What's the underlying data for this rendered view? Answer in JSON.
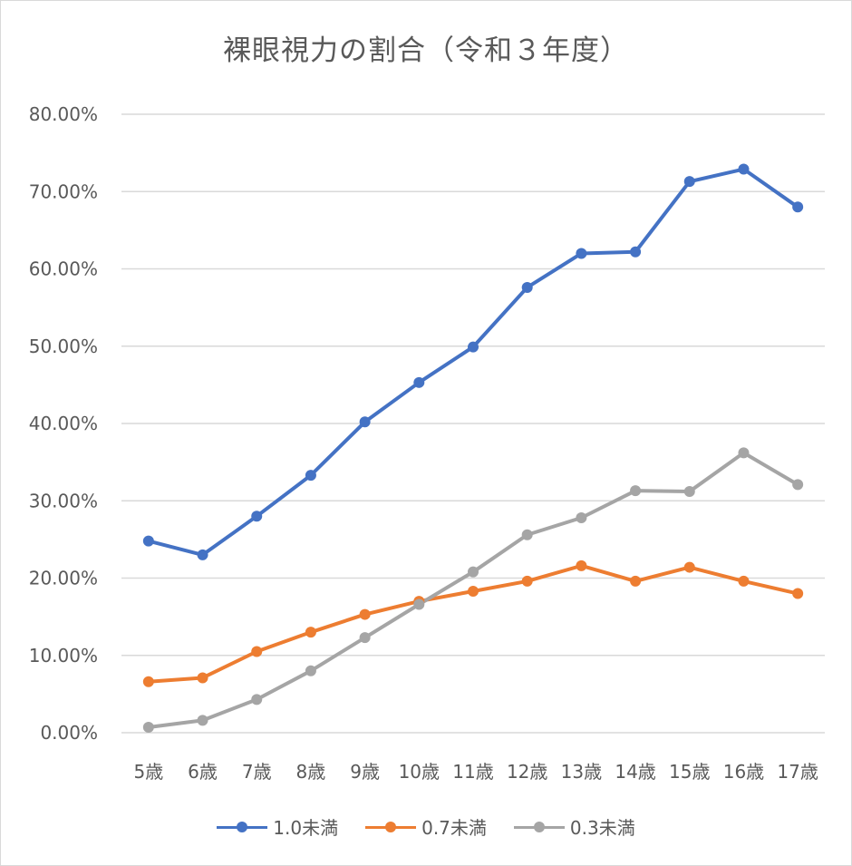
{
  "chart_data": {
    "type": "line",
    "title": "裸眼視力の割合（令和３年度）",
    "xlabel": "",
    "ylabel": "",
    "categories": [
      "5歳",
      "6歳",
      "7歳",
      "8歳",
      "9歳",
      "10歳",
      "11歳",
      "12歳",
      "13歳",
      "14歳",
      "15歳",
      "16歳",
      "17歳"
    ],
    "y_tick_labels": [
      "0.00%",
      "10.00%",
      "20.00%",
      "30.00%",
      "40.00%",
      "50.00%",
      "60.00%",
      "70.00%",
      "80.00%"
    ],
    "ylim": [
      0,
      80
    ],
    "grid": true,
    "legend_position": "bottom",
    "series": [
      {
        "name": "1.0未満",
        "color": "#4472c4",
        "values": [
          24.8,
          23.0,
          28.0,
          33.3,
          40.2,
          45.3,
          49.9,
          57.6,
          62.0,
          62.2,
          71.3,
          72.9,
          68.0
        ]
      },
      {
        "name": "0.7未満",
        "color": "#ed7d31",
        "values": [
          6.6,
          7.1,
          10.5,
          13.0,
          15.3,
          17.0,
          18.3,
          19.6,
          21.6,
          19.6,
          21.4,
          19.6,
          18.0
        ]
      },
      {
        "name": "0.3未満",
        "color": "#a5a5a5",
        "values": [
          0.7,
          1.6,
          4.3,
          8.0,
          12.3,
          16.6,
          20.8,
          25.6,
          27.8,
          31.3,
          31.2,
          36.2,
          32.1
        ]
      }
    ]
  }
}
